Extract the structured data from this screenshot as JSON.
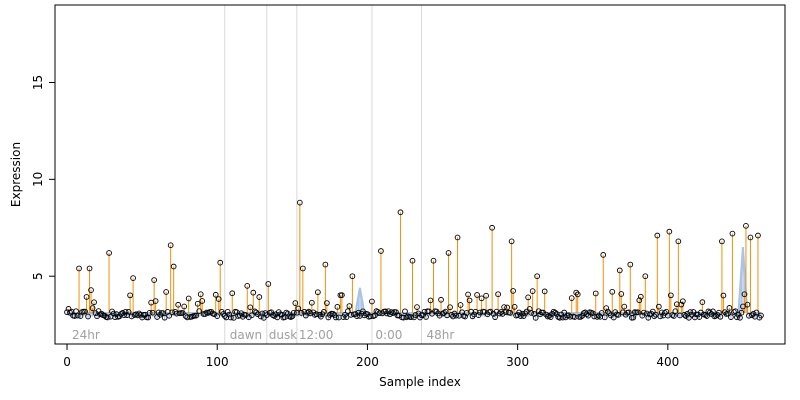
{
  "chart_data": {
    "type": "scatter",
    "xlabel": "Sample index",
    "ylabel": "Expression",
    "xlim": [
      -8,
      478
    ],
    "ylim": [
      1.5,
      19
    ],
    "xticks": [
      0,
      100,
      200,
      300,
      400
    ],
    "yticks": [
      5,
      10,
      15
    ],
    "baseline_typical": 3.1,
    "colors": {
      "points": "#000000",
      "stems": "#f0900a",
      "baseline": "#aac4e6",
      "vlines": "#d9d9d9",
      "region_labels": "#a0a0a0",
      "axes": "#000000"
    },
    "vlines": [
      105,
      133,
      153,
      203,
      236
    ],
    "region_labels": [
      {
        "text": "24hr",
        "x": 2
      },
      {
        "text": "dawn",
        "x": 107
      },
      {
        "text": "dusk",
        "x": 133
      },
      {
        "text": "12:00",
        "x": 153
      },
      {
        "text": "0:00",
        "x": 204
      },
      {
        "text": "48hr",
        "x": 238
      }
    ],
    "baseline_peaks": [
      {
        "x": 195,
        "value": 4.4
      },
      {
        "x": 450,
        "value": 6.5
      }
    ],
    "highlighted": [
      {
        "x": 8,
        "value": 5.4
      },
      {
        "x": 15,
        "value": 5.4
      },
      {
        "x": 28,
        "value": 6.2
      },
      {
        "x": 44,
        "value": 4.9
      },
      {
        "x": 58,
        "value": 4.8
      },
      {
        "x": 69,
        "value": 6.6
      },
      {
        "x": 71,
        "value": 5.5
      },
      {
        "x": 102,
        "value": 5.7
      },
      {
        "x": 120,
        "value": 4.5
      },
      {
        "x": 134,
        "value": 4.6
      },
      {
        "x": 155,
        "value": 8.8
      },
      {
        "x": 157,
        "value": 5.4
      },
      {
        "x": 172,
        "value": 5.6
      },
      {
        "x": 190,
        "value": 5.0
      },
      {
        "x": 209,
        "value": 6.3
      },
      {
        "x": 222,
        "value": 8.3
      },
      {
        "x": 230,
        "value": 5.8
      },
      {
        "x": 244,
        "value": 5.8
      },
      {
        "x": 254,
        "value": 6.2
      },
      {
        "x": 260,
        "value": 7.0
      },
      {
        "x": 283,
        "value": 7.5
      },
      {
        "x": 296,
        "value": 6.8
      },
      {
        "x": 313,
        "value": 5.0
      },
      {
        "x": 357,
        "value": 6.1
      },
      {
        "x": 368,
        "value": 5.3
      },
      {
        "x": 375,
        "value": 5.6
      },
      {
        "x": 385,
        "value": 5.0
      },
      {
        "x": 393,
        "value": 7.1
      },
      {
        "x": 401,
        "value": 7.3
      },
      {
        "x": 407,
        "value": 6.8
      },
      {
        "x": 436,
        "value": 6.8
      },
      {
        "x": 443,
        "value": 7.2
      },
      {
        "x": 452,
        "value": 7.6
      },
      {
        "x": 455,
        "value": 7.0
      },
      {
        "x": 460,
        "value": 7.1
      }
    ],
    "n_points": 463
  }
}
